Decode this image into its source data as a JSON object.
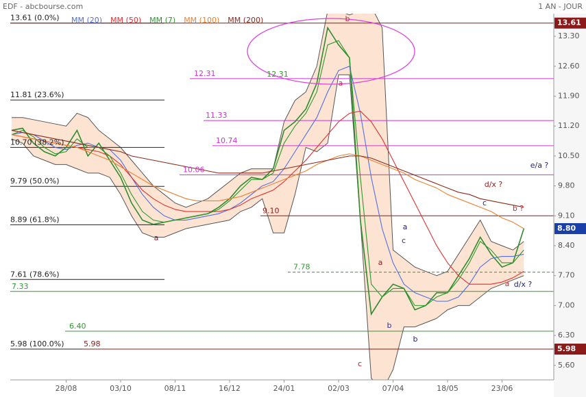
{
  "header": {
    "title": "EDF - abcbourse.com",
    "period": "1 AN - JOUR"
  },
  "chart_data": {
    "type": "line",
    "categories": [
      null,
      null,
      null,
      null,
      null,
      "28/08",
      null,
      null,
      null,
      null,
      "03/10",
      null,
      null,
      null,
      null,
      "08/11",
      null,
      null,
      null,
      null,
      "16/12",
      null,
      null,
      null,
      null,
      "24/01",
      null,
      null,
      null,
      null,
      "02/03",
      null,
      null,
      null,
      null,
      "07/04",
      null,
      null,
      null,
      null,
      "18/05",
      null,
      null,
      null,
      null,
      "23/06",
      null,
      null
    ],
    "series": [
      {
        "color": "#2e8b2e",
        "last_label": "8.80",
        "values": [
          11.1,
          11.15,
          10.8,
          10.6,
          10.5,
          10.7,
          11.1,
          10.5,
          10.8,
          10.4,
          10.0,
          9.4,
          9.0,
          8.9,
          8.95,
          9.0,
          9.05,
          9.1,
          9.15,
          9.3,
          9.5,
          9.8,
          10.0,
          9.95,
          10.2,
          11.1,
          11.3,
          11.6,
          12.2,
          13.5,
          13.1,
          12.8,
          9.0,
          6.8,
          7.2,
          7.5,
          7.4,
          6.9,
          7.0,
          7.3,
          7.3,
          7.7,
          8.1,
          8.6,
          8.2,
          7.9,
          8.0,
          8.8
        ]
      },
      {
        "name": "MM (20)",
        "color": "#4f6fe0",
        "values": [
          11.0,
          11.05,
          11.0,
          10.85,
          10.7,
          10.65,
          10.75,
          10.8,
          10.7,
          10.65,
          10.4,
          10.0,
          9.6,
          9.3,
          9.1,
          9.0,
          9.0,
          9.05,
          9.1,
          9.15,
          9.25,
          9.4,
          9.6,
          9.8,
          9.9,
          10.2,
          10.6,
          11.0,
          11.4,
          12.0,
          12.5,
          12.6,
          11.5,
          10.0,
          8.8,
          8.0,
          7.5,
          7.3,
          7.2,
          7.1,
          7.1,
          7.2,
          7.5,
          7.9,
          8.1,
          8.15,
          8.15,
          8.2
        ]
      },
      {
        "name": "MM (50)",
        "color": "#e03030",
        "values": [
          11.0,
          10.95,
          10.9,
          10.85,
          10.8,
          10.75,
          10.7,
          10.65,
          10.6,
          10.5,
          10.3,
          10.0,
          9.7,
          9.5,
          9.35,
          9.25,
          9.2,
          9.2,
          9.2,
          9.2,
          9.25,
          9.35,
          9.5,
          9.6,
          9.7,
          9.9,
          10.15,
          10.4,
          10.7,
          11.0,
          11.3,
          11.5,
          11.55,
          11.3,
          10.9,
          10.4,
          9.9,
          9.4,
          8.9,
          8.4,
          8.0,
          7.7,
          7.5,
          7.5,
          7.5,
          7.55,
          7.65,
          7.8
        ]
      },
      {
        "name": "MM (7)",
        "color": "#2a9a2a",
        "values": [
          11.0,
          11.1,
          10.95,
          10.7,
          10.55,
          10.6,
          10.9,
          10.7,
          10.7,
          10.5,
          10.1,
          9.6,
          9.2,
          9.0,
          8.95,
          9.0,
          9.05,
          9.1,
          9.15,
          9.25,
          9.45,
          9.7,
          9.95,
          9.95,
          10.1,
          10.8,
          11.2,
          11.5,
          12.0,
          13.1,
          13.2,
          12.8,
          10.0,
          7.5,
          7.2,
          7.4,
          7.4,
          7.0,
          7.0,
          7.2,
          7.3,
          7.6,
          8.0,
          8.5,
          8.3,
          8.0,
          8.0,
          8.3
        ]
      },
      {
        "name": "MM (100)",
        "color": "#f08030",
        "values": [
          11.0,
          10.95,
          10.9,
          10.85,
          10.8,
          10.75,
          10.7,
          10.6,
          10.5,
          10.4,
          10.25,
          10.1,
          9.95,
          9.8,
          9.7,
          9.6,
          9.5,
          9.45,
          9.45,
          9.45,
          9.5,
          9.55,
          9.65,
          9.75,
          9.85,
          9.95,
          10.05,
          10.15,
          10.3,
          10.4,
          10.5,
          10.55,
          10.5,
          10.4,
          10.3,
          10.2,
          10.1,
          9.95,
          9.85,
          9.75,
          9.6,
          9.5,
          9.4,
          9.3,
          9.2,
          9.05,
          8.95,
          8.8
        ]
      },
      {
        "name": "MM (200)",
        "color": "#8b2a1a",
        "values": [
          11.1,
          11.05,
          11.0,
          10.95,
          10.9,
          10.85,
          10.8,
          10.75,
          10.7,
          10.65,
          10.6,
          10.5,
          10.45,
          10.4,
          10.35,
          10.3,
          10.25,
          10.2,
          10.15,
          10.1,
          10.1,
          10.1,
          10.1,
          10.1,
          10.15,
          10.2,
          10.25,
          10.3,
          10.35,
          10.4,
          10.45,
          10.5,
          10.5,
          10.45,
          10.35,
          10.25,
          10.15,
          10.05,
          9.95,
          9.85,
          9.75,
          9.65,
          9.6,
          9.5,
          9.45,
          9.4,
          9.35,
          9.3
        ]
      }
    ],
    "bands": {
      "color": "#fde3d2",
      "upper": [
        11.4,
        11.4,
        11.35,
        11.3,
        11.25,
        11.2,
        11.5,
        11.4,
        11.1,
        10.9,
        10.7,
        10.4,
        10.1,
        9.8,
        9.6,
        9.4,
        9.3,
        9.4,
        9.5,
        9.7,
        9.9,
        10.1,
        10.2,
        10.2,
        10.2,
        11.3,
        11.8,
        12.0,
        12.6,
        13.9,
        13.9,
        13.8,
        13.9,
        14.0,
        13.5,
        8.3,
        8.1,
        7.9,
        7.8,
        7.7,
        7.8,
        8.2,
        8.6,
        9.0,
        8.5,
        8.4,
        8.3,
        8.5
      ],
      "lower": [
        10.9,
        10.8,
        10.5,
        10.4,
        10.3,
        10.3,
        10.2,
        10.1,
        10.1,
        10.0,
        9.6,
        9.1,
        8.7,
        8.6,
        8.6,
        8.7,
        8.8,
        8.85,
        8.9,
        8.95,
        9.0,
        9.2,
        9.3,
        9.5,
        8.7,
        8.7,
        9.6,
        10.7,
        10.6,
        10.8,
        12.4,
        12.4,
        9.0,
        5.3,
        5.0,
        5.5,
        6.5,
        6.5,
        6.6,
        6.7,
        6.9,
        7.0,
        7.0,
        7.2,
        7.4,
        7.5,
        7.6,
        7.7
      ]
    },
    "ylim": [
      5.26,
      13.83
    ],
    "yticks": [
      {
        "value": 5.6,
        "label": "5.60"
      },
      {
        "value": 6.3,
        "label": "6.30"
      },
      {
        "value": 7.0,
        "label": "7.00"
      },
      {
        "value": 7.7,
        "label": "7.70"
      },
      {
        "value": 8.4,
        "label": "8.40"
      },
      {
        "value": 9.1,
        "label": "9.10"
      },
      {
        "value": 9.8,
        "label": "9.80"
      },
      {
        "value": 10.5,
        "label": "10.50"
      },
      {
        "value": 11.2,
        "label": "11.20"
      },
      {
        "value": 11.9,
        "label": "11.90"
      },
      {
        "value": 12.6,
        "label": "12.60"
      },
      {
        "value": 13.3,
        "label": "13.30"
      }
    ],
    "levels": [
      {
        "value": 13.61,
        "label": "13.61",
        "color": "#8b1a1a",
        "box": true
      },
      {
        "value": 12.31,
        "label": "12.31",
        "color": "#cc33cc"
      },
      {
        "value": 11.33,
        "label": "11.33",
        "color": "#cc33cc"
      },
      {
        "value": 10.74,
        "label": "10.74",
        "color": "#cc33cc"
      },
      {
        "value": 10.06,
        "label": "10.06",
        "color": "#cc33cc"
      },
      {
        "value": 9.1,
        "label": "9.10",
        "color": "#8b1a1a"
      },
      {
        "value": 7.78,
        "label": "7.78",
        "color": "#339933",
        "dashed": true
      },
      {
        "value": 7.33,
        "label": "7.33",
        "color": "#339933"
      },
      {
        "value": 6.4,
        "label": "6.40",
        "color": "#339933"
      },
      {
        "value": 5.98,
        "label": "5.98",
        "color": "#8b1a1a",
        "box": true
      }
    ],
    "fibonacci": [
      {
        "value": 13.61,
        "label": "13.61 (0.0%)"
      },
      {
        "value": 11.81,
        "label": "11.81 (23.6%)"
      },
      {
        "value": 10.7,
        "label": "10.70 (38.2%)"
      },
      {
        "value": 9.79,
        "label": "9.79 (50.0%)"
      },
      {
        "value": 8.89,
        "label": "8.89 (61.8%)"
      },
      {
        "value": 7.61,
        "label": "7.61 (78.6%)"
      },
      {
        "value": 5.98,
        "label": "5.98 (100.0%)"
      }
    ],
    "annotations": [
      {
        "text": "a",
        "color": "#a01818"
      },
      {
        "text": "b",
        "color": "#c03030"
      },
      {
        "text": "a",
        "color": "#c03030"
      },
      {
        "text": "c",
        "color": "#c01818"
      },
      {
        "text": "a",
        "color": "#20208a"
      },
      {
        "text": "c",
        "color": "#3030a0"
      },
      {
        "text": "a",
        "color": "#a01818"
      },
      {
        "text": "b",
        "color": "#3030a0"
      },
      {
        "text": "b",
        "color": "#20208a"
      },
      {
        "text": "d/x ?",
        "color": "#a01818"
      },
      {
        "text": "e/a ?",
        "color": "#20208a"
      },
      {
        "text": "c",
        "color": "#20208a"
      },
      {
        "text": "b ?",
        "color": "#c03030"
      },
      {
        "text": "a",
        "color": "#c03030"
      },
      {
        "text": "d/x ?",
        "color": "#20208a"
      },
      {
        "text": "12.31",
        "color": "#2a9a2a"
      }
    ]
  }
}
